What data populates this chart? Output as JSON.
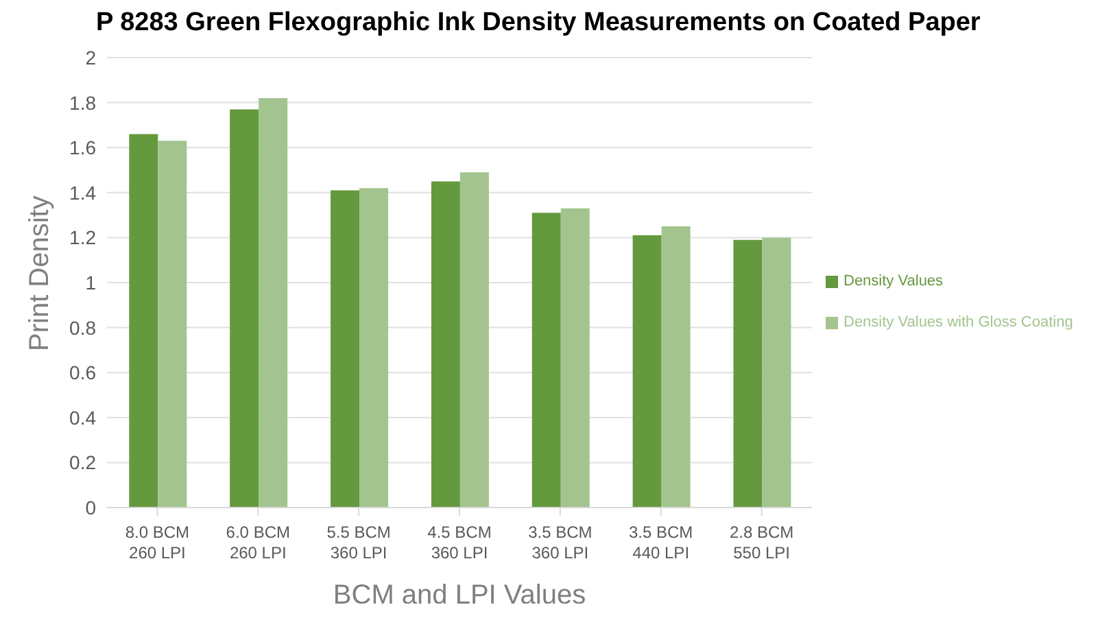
{
  "chart_data": {
    "type": "bar",
    "title": "P 8283 Green Flexographic Ink Density Measurements on Coated Paper",
    "xlabel": "BCM and LPI Values",
    "ylabel": "Print Density",
    "categories": [
      "8.0 BCM\n260 LPI",
      "6.0 BCM\n260 LPI",
      "5.5 BCM\n360 LPI",
      "4.5 BCM\n360 LPI",
      "3.5 BCM\n360 LPI",
      "3.5 BCM\n440 LPI",
      "2.8 BCM\n550 LPI"
    ],
    "series": [
      {
        "name": "Density Values",
        "color": "#64993e",
        "values": [
          1.66,
          1.77,
          1.41,
          1.45,
          1.31,
          1.21,
          1.19
        ]
      },
      {
        "name": "Density Values with Gloss Coating",
        "color": "#a3c48f",
        "values": [
          1.63,
          1.82,
          1.42,
          1.49,
          1.33,
          1.25,
          1.2
        ]
      }
    ],
    "ylim": [
      0,
      2
    ],
    "yticks": [
      0,
      0.2,
      0.4,
      0.6,
      0.8,
      1,
      1.2,
      1.4,
      1.6,
      1.8,
      2
    ],
    "grid": "y",
    "legend": "right"
  }
}
